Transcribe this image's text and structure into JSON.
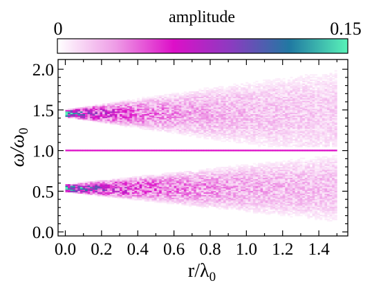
{
  "chart_data": {
    "type": "heatmap",
    "colorbar": {
      "label": "amplitude",
      "min_label": "0",
      "max_label": "0.15",
      "range": [
        0,
        0.15
      ],
      "colors": [
        "#ffffff",
        "#ee9ce6",
        "#dd0fc8",
        "#8a3cc0",
        "#2079a2",
        "#59f3b8"
      ]
    },
    "xlabel": {
      "main": "r/λ",
      "sub": "0"
    },
    "ylabel": {
      "main": "ω/ω",
      "sub": "0"
    },
    "xlim": [
      -0.04,
      1.56
    ],
    "ylim": [
      -0.05,
      2.12
    ],
    "xticks": [
      0.0,
      0.2,
      0.4,
      0.6,
      0.8,
      1.0,
      1.2,
      1.4
    ],
    "xtick_labels": [
      "0.0",
      "0.2",
      "0.4",
      "0.6",
      "0.8",
      "1.0",
      "1.2",
      "1.4"
    ],
    "yticks": [
      0.0,
      0.5,
      1.0,
      1.5,
      2.0
    ],
    "ytick_labels": [
      "0.0",
      "0.5",
      "1.0",
      "1.5",
      "2.0"
    ],
    "bands": [
      {
        "frequency": 1.0,
        "behavior": "narrow, constant",
        "amplitude": 0.06
      },
      {
        "frequency": 1.45,
        "behavior": "broadens with r",
        "peak_amplitude_at_r0": 0.14,
        "halfwidth_at_r0": 0.05,
        "halfwidth_at_r1_5": 0.6
      },
      {
        "frequency": 0.53,
        "behavior": "broadens with r",
        "peak_amplitude_at_r0": 0.14,
        "halfwidth_at_r0": 0.05,
        "halfwidth_at_r1_5": 0.45
      }
    ],
    "r_range": [
      0.0,
      1.5
    ]
  }
}
